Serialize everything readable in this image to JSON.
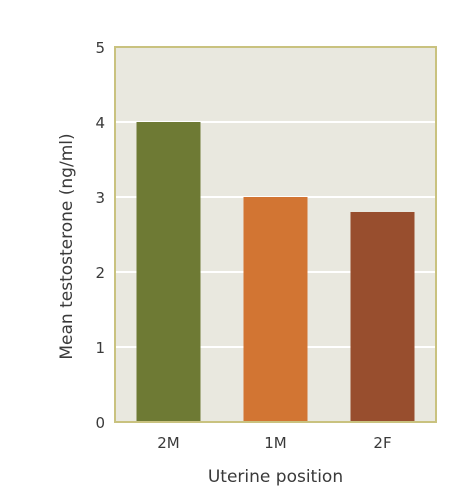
{
  "chart_data": {
    "type": "bar",
    "title": "",
    "xlabel": "Uterine position",
    "ylabel": "Mean testosterone (ng/ml)",
    "categories": [
      "2M",
      "1M",
      "2F"
    ],
    "values": [
      4.0,
      3.0,
      2.8
    ],
    "ylim": [
      0,
      5
    ],
    "yticks": [
      "0",
      "1",
      "2",
      "3",
      "4",
      "5"
    ],
    "grid": true,
    "colors": {
      "bars": [
        "#6e7a34",
        "#d27533",
        "#984e2e"
      ],
      "plot_background": "#e9e8df",
      "gridline": "#ffffff",
      "frame": "#c9c27f"
    }
  }
}
